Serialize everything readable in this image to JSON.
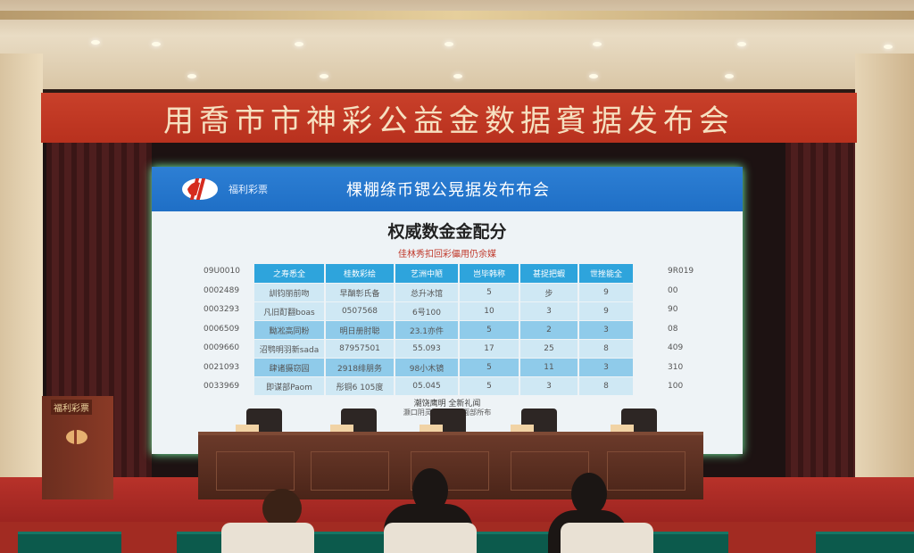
{
  "banner": {
    "text": "用喬市市神彩公益金数据賓据发布会"
  },
  "screen": {
    "logo_text": "福利彩票",
    "header_title": "棵棚绦币锶公晃据发布布会",
    "subtitle": "权威数金金配分",
    "note": "佳林秀扣回彩儡用仍余媒",
    "table": {
      "headers": [
        "之寿悉全",
        "桂数彩绘",
        "艺洲中陋",
        "岂毕韩称",
        "甚捉把蝦",
        "世挫能全"
      ],
      "rows": [
        [
          "訓钧丽前吻",
          "早酗彰氏备",
          "总升冰馆",
          "5",
          "步",
          "9"
        ],
        [
          "凡旧酊翻boas",
          "0507568",
          "6号100",
          "10",
          "3",
          "9"
        ],
        [
          "黝凇高同粉",
          "明日册肘聪",
          "23.1亦件",
          "5",
          "2",
          "3"
        ],
        [
          "沼鹗明羽新sada",
          "87957501",
          "55.093",
          "17",
          "25",
          "8"
        ],
        [
          "肆诸摄窃园",
          "2918绯朋务",
          "98小木镜",
          "5",
          "11",
          "3"
        ],
        [
          "即谋部Paom",
          "彤铜6 105度",
          "05.045",
          "5",
          "3",
          "8"
        ]
      ],
      "left_labels": [
        "09U0010",
        "0002489",
        "0003293",
        "0006509",
        "0009660",
        "0021093",
        "0033969"
      ],
      "right_labels": [
        "9R019",
        "00",
        "90",
        "08",
        "409",
        "310",
        "100"
      ]
    },
    "footer_line1": "潮饶鹰明 全新礼闻",
    "footer_line2": "灏口阴灵木州 诡诫面部所布"
  },
  "podium": {
    "label": "福利彩票"
  },
  "colors": {
    "banner": "#c0392b",
    "screen_header": "#2d7fd4",
    "table_header": "#2ea4dc",
    "stage": "#b8322a"
  }
}
